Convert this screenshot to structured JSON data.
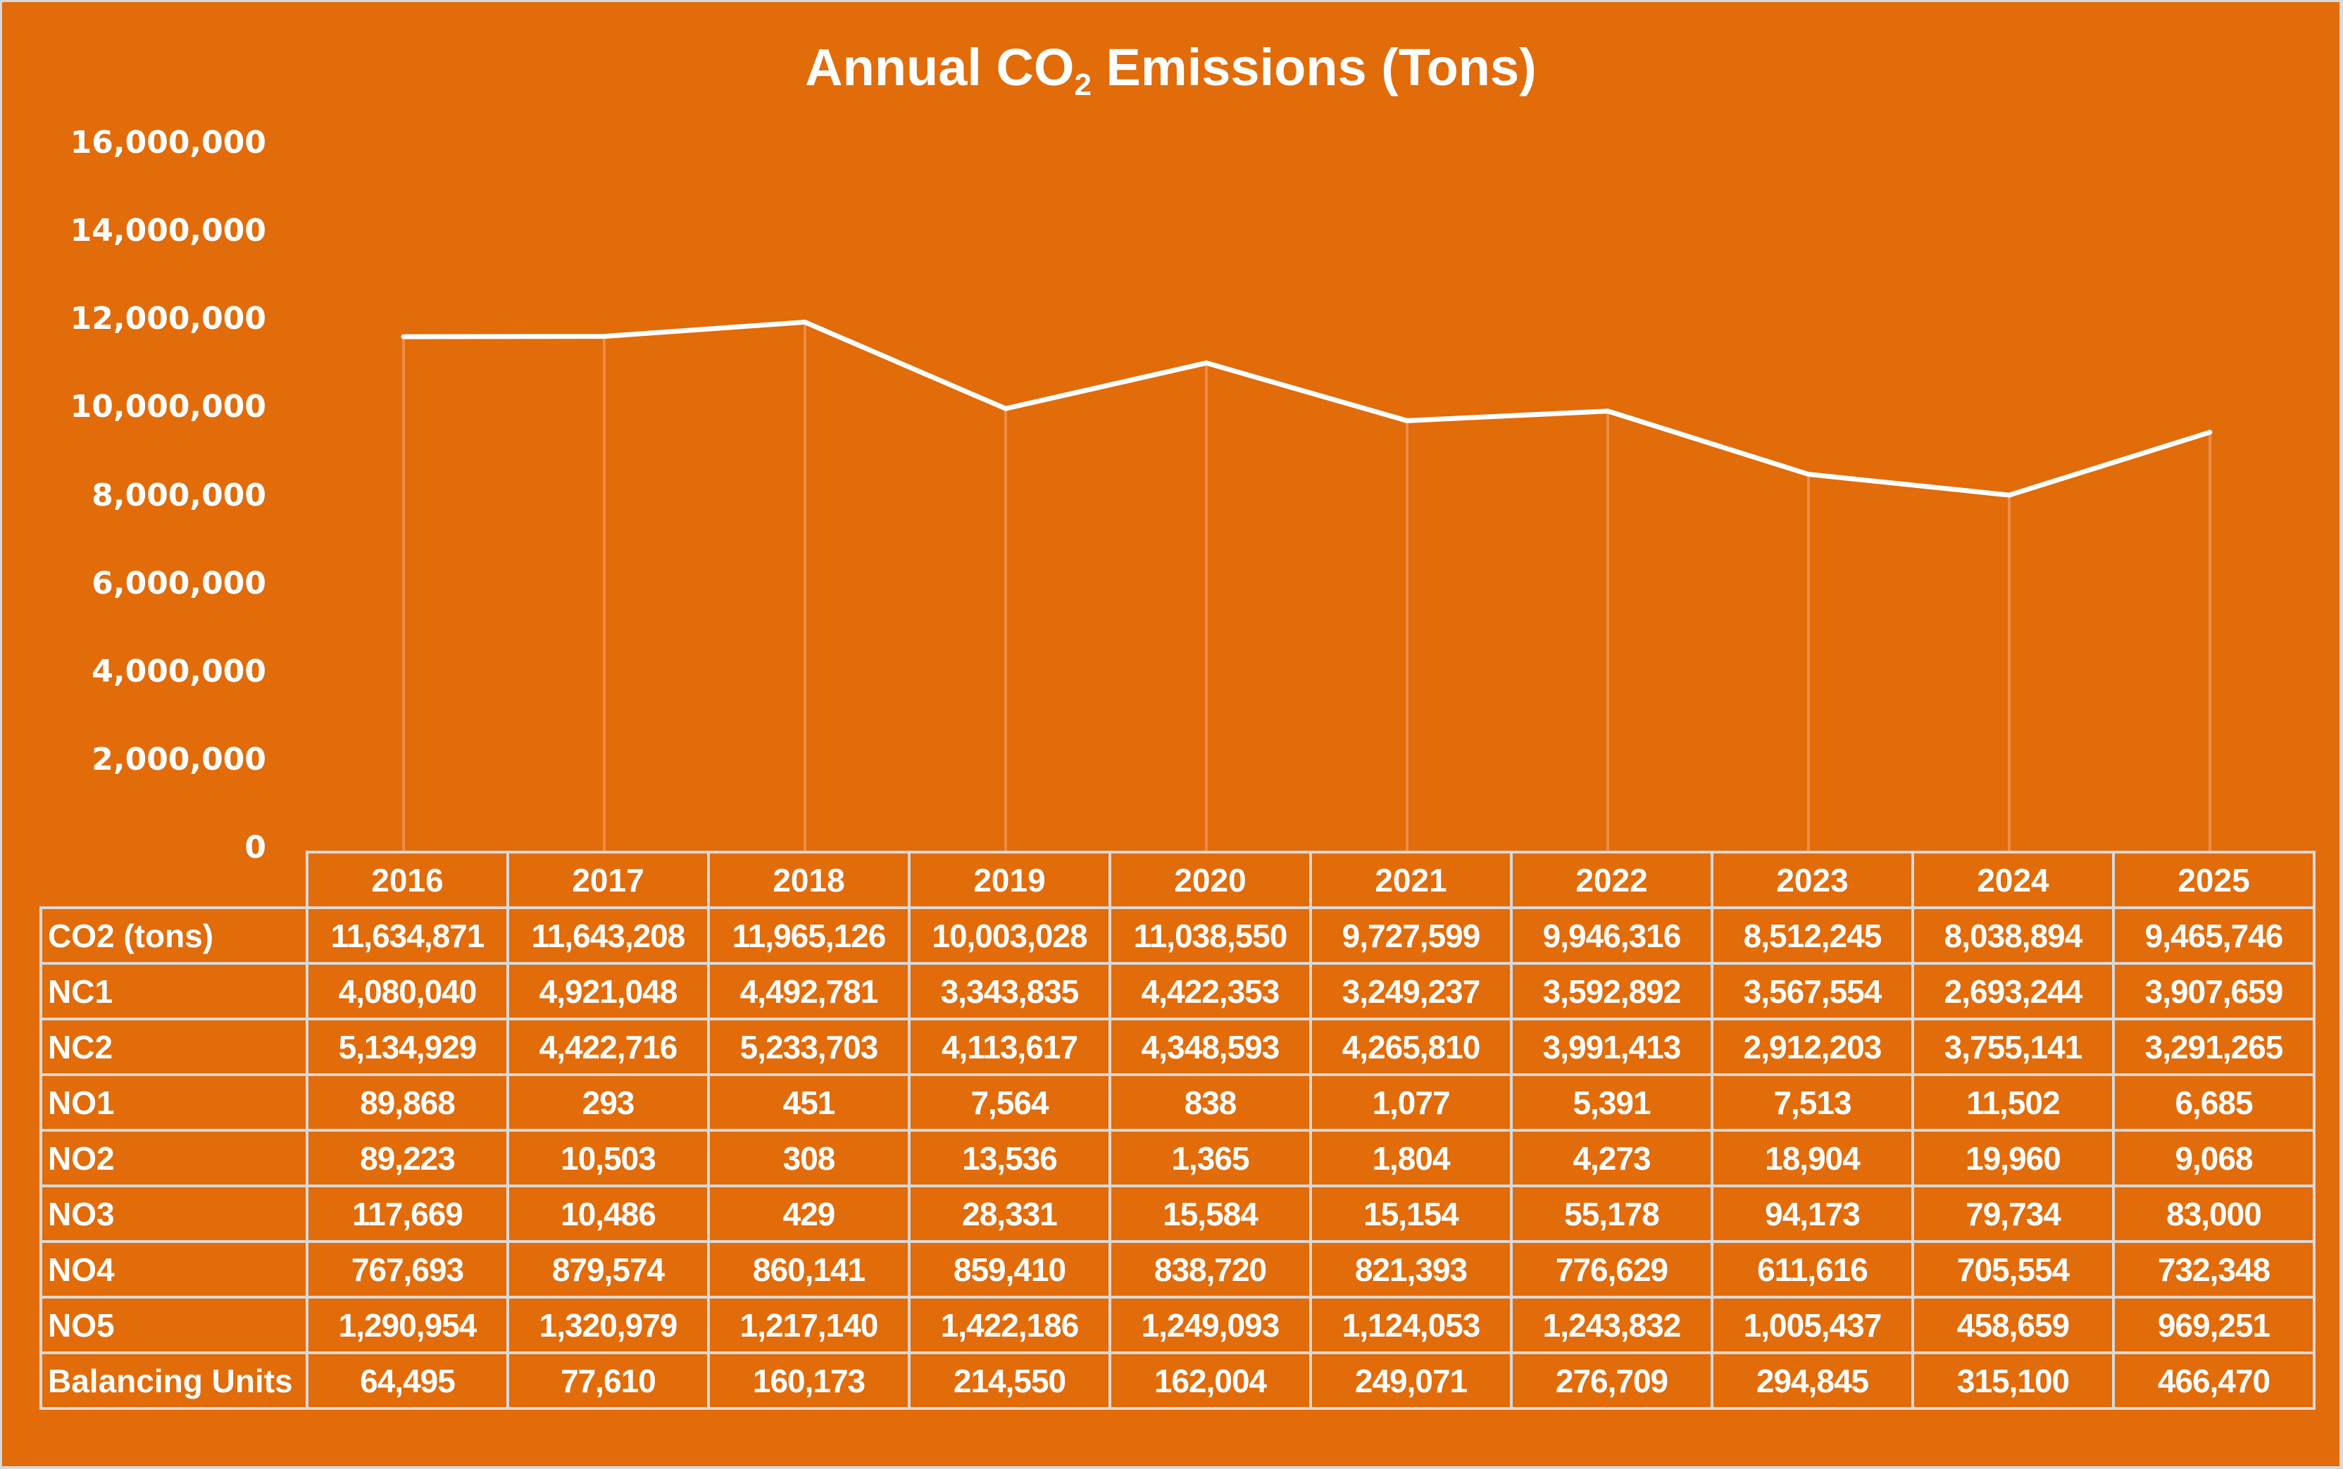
{
  "chart_data": {
    "type": "line",
    "title": "Annual CO2 Emissions (Tons)",
    "title_parts": {
      "prefix": "Annual CO",
      "subscript": "2",
      "suffix": " Emissions (Tons)"
    },
    "xlabel": "",
    "ylabel": "",
    "ylim": [
      0,
      16000000
    ],
    "y_ticks": [
      0,
      2000000,
      4000000,
      6000000,
      8000000,
      10000000,
      12000000,
      14000000,
      16000000
    ],
    "y_tick_labels": [
      "0",
      "2,000,000",
      "4,000,000",
      "6,000,000",
      "8,000,000",
      "10,000,000",
      "12,000,000",
      "14,000,000",
      "16,000,000"
    ],
    "grid": "vertical drop lines at each category",
    "legend": "none",
    "categories": [
      "2016",
      "2017",
      "2018",
      "2019",
      "2020",
      "2021",
      "2022",
      "2023",
      "2024",
      "2025"
    ],
    "plotted_series": "CO2 (tons)",
    "series": [
      {
        "name": "CO2 (tons)",
        "values": [
          11634871,
          11643208,
          11965126,
          10003028,
          11038550,
          9727599,
          9946316,
          8512245,
          8038894,
          9465746
        ],
        "labels": [
          "11,634,871",
          "11,643,208",
          "11,965,126",
          "10,003,028",
          "11,038,550",
          "9,727,599",
          "9,946,316",
          "8,512,245",
          "8,038,894",
          "9,465,746"
        ]
      },
      {
        "name": "NC1",
        "values": [
          4080040,
          4921048,
          4492781,
          3343835,
          4422353,
          3249237,
          3592892,
          3567554,
          2693244,
          3907659
        ],
        "labels": [
          "4,080,040",
          "4,921,048",
          "4,492,781",
          "3,343,835",
          "4,422,353",
          "3,249,237",
          "3,592,892",
          "3,567,554",
          "2,693,244",
          "3,907,659"
        ]
      },
      {
        "name": "NC2",
        "values": [
          5134929,
          4422716,
          5233703,
          4113617,
          4348593,
          4265810,
          3991413,
          2912203,
          3755141,
          3291265
        ],
        "labels": [
          "5,134,929",
          "4,422,716",
          "5,233,703",
          "4,113,617",
          "4,348,593",
          "4,265,810",
          "3,991,413",
          "2,912,203",
          "3,755,141",
          "3,291,265"
        ]
      },
      {
        "name": "NO1",
        "values": [
          89868,
          293,
          451,
          7564,
          838,
          1077,
          5391,
          7513,
          11502,
          6685
        ],
        "labels": [
          "89,868",
          "293",
          "451",
          "7,564",
          "838",
          "1,077",
          "5,391",
          "7,513",
          "11,502",
          "6,685"
        ]
      },
      {
        "name": "NO2",
        "values": [
          89223,
          10503,
          308,
          13536,
          1365,
          1804,
          4273,
          18904,
          19960,
          9068
        ],
        "labels": [
          "89,223",
          "10,503",
          "308",
          "13,536",
          "1,365",
          "1,804",
          "4,273",
          "18,904",
          "19,960",
          "9,068"
        ]
      },
      {
        "name": "NO3",
        "values": [
          117669,
          10486,
          429,
          28331,
          15584,
          15154,
          55178,
          94173,
          79734,
          83000
        ],
        "labels": [
          "117,669",
          "10,486",
          "429",
          "28,331",
          "15,584",
          "15,154",
          "55,178",
          "94,173",
          "79,734",
          "83,000"
        ]
      },
      {
        "name": "NO4",
        "values": [
          767693,
          879574,
          860141,
          859410,
          838720,
          821393,
          776629,
          611616,
          705554,
          732348
        ],
        "labels": [
          "767,693",
          "879,574",
          "860,141",
          "859,410",
          "838,720",
          "821,393",
          "776,629",
          "611,616",
          "705,554",
          "732,348"
        ]
      },
      {
        "name": "NO5",
        "values": [
          1290954,
          1320979,
          1217140,
          1422186,
          1249093,
          1124053,
          1243832,
          1005437,
          458659,
          969251
        ],
        "labels": [
          "1,290,954",
          "1,320,979",
          "1,217,140",
          "1,422,186",
          "1,249,093",
          "1,124,053",
          "1,243,832",
          "1,005,437",
          "458,659",
          "969,251"
        ]
      },
      {
        "name": "Balancing Units",
        "values": [
          64495,
          77610,
          160173,
          214550,
          162004,
          249071,
          276709,
          294845,
          315100,
          466470
        ],
        "labels": [
          "64,495",
          "77,610",
          "160,173",
          "214,550",
          "162,004",
          "249,071",
          "276,709",
          "294,845",
          "315,100",
          "466,470"
        ]
      }
    ]
  },
  "colors": {
    "background": "#E26B0A",
    "line": "#FFFFFF",
    "text": "#FFFFFF",
    "table_border": "#D9D9D9",
    "drop_lines": "#EE8C45",
    "outer_border": "#D9D9D9"
  }
}
